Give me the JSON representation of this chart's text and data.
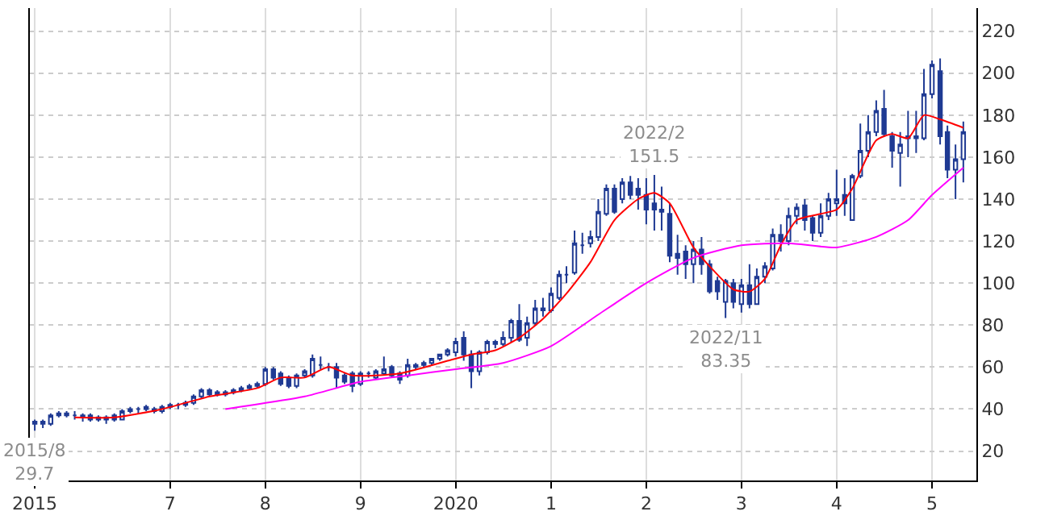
{
  "chart_data": {
    "type": "candlestick",
    "xlim": [
      "2015-07-10",
      "2025-06-20"
    ],
    "ylim": [
      6,
      231
    ],
    "xticks": [
      {
        "value": "2015-08",
        "label": "2015"
      },
      {
        "value": "2017-01",
        "label": "7"
      },
      {
        "value": "2018-01",
        "label": "8"
      },
      {
        "value": "2019-01",
        "label": "9"
      },
      {
        "value": "2020-01",
        "label": "2020"
      },
      {
        "value": "2021-01",
        "label": "1"
      },
      {
        "value": "2022-01",
        "label": "2"
      },
      {
        "value": "2023-01",
        "label": "3"
      },
      {
        "value": "2024-01",
        "label": "4"
      },
      {
        "value": "2025-01",
        "label": "5"
      }
    ],
    "yticks": [
      20,
      40,
      60,
      80,
      100,
      120,
      140,
      160,
      180,
      200,
      220
    ],
    "grid": true,
    "annotations": [
      {
        "text": "2022/2\n151.5",
        "x": "2022-02",
        "y": 151.5
      },
      {
        "text": "2022/11\n83.35",
        "x": "2022-11",
        "y": 83.35
      },
      {
        "text": "2015/8\n29.7",
        "x": "2015-08",
        "y": 29.7
      }
    ],
    "series": [
      {
        "type": "line",
        "color": "#ff0000",
        "x": [
          "2016-01",
          "2016-06",
          "2016-12",
          "2017-06",
          "2017-12",
          "2018-03",
          "2018-06",
          "2018-09",
          "2018-12",
          "2019-06",
          "2019-12",
          "2020-03",
          "2020-06",
          "2020-09",
          "2020-12",
          "2021-03",
          "2021-06",
          "2021-09",
          "2021-12",
          "2022-02",
          "2022-04",
          "2022-07",
          "2022-09",
          "2022-12",
          "2023-02",
          "2023-04",
          "2023-06",
          "2023-08",
          "2023-11",
          "2024-01",
          "2024-03",
          "2024-06",
          "2024-08",
          "2024-10",
          "2024-12",
          "2025-02",
          "2025-05"
        ],
        "values": [
          36,
          36,
          40,
          46,
          50,
          55,
          55,
          60,
          56,
          57,
          63,
          66,
          68,
          74,
          83,
          95,
          110,
          130,
          140,
          143,
          138,
          117,
          108,
          97,
          96,
          102,
          118,
          130,
          133,
          135,
          145,
          168,
          171,
          169,
          180,
          178,
          174
        ]
      },
      {
        "type": "line",
        "color": "#ff00ff",
        "x": [
          "2017-08",
          "2018-06",
          "2019-01",
          "2019-07",
          "2020-01",
          "2020-07",
          "2021-01",
          "2021-07",
          "2022-01",
          "2022-07",
          "2023-01",
          "2023-07",
          "2024-01",
          "2024-06",
          "2024-10",
          "2025-01",
          "2025-05"
        ],
        "values": [
          40,
          46,
          53,
          56,
          59,
          62,
          70,
          85,
          100,
          112,
          118,
          119,
          117,
          122,
          130,
          142,
          155
        ]
      },
      {
        "color": "#1f3a93",
        "x": [
          "2015-08",
          "2015-09",
          "2015-10",
          "2015-11",
          "2015-12",
          "2016-01",
          "2016-02",
          "2016-03",
          "2016-04",
          "2016-05",
          "2016-06",
          "2016-07",
          "2016-08",
          "2016-09",
          "2016-10",
          "2016-11",
          "2016-12",
          "2017-01",
          "2017-02",
          "2017-03",
          "2017-04",
          "2017-05",
          "2017-06",
          "2017-07",
          "2017-08",
          "2017-09",
          "2017-10",
          "2017-11",
          "2017-12",
          "2018-01",
          "2018-02",
          "2018-03",
          "2018-04",
          "2018-05",
          "2018-06",
          "2018-07",
          "2018-08",
          "2018-09",
          "2018-10",
          "2018-11",
          "2018-12",
          "2019-01",
          "2019-02",
          "2019-03",
          "2019-04",
          "2019-05",
          "2019-06",
          "2019-07",
          "2019-08",
          "2019-09",
          "2019-10",
          "2019-11",
          "2019-12",
          "2020-01",
          "2020-02",
          "2020-03",
          "2020-04",
          "2020-05",
          "2020-06",
          "2020-07",
          "2020-08",
          "2020-09",
          "2020-10",
          "2020-11",
          "2020-12",
          "2021-01",
          "2021-02",
          "2021-03",
          "2021-04",
          "2021-05",
          "2021-06",
          "2021-07",
          "2021-08",
          "2021-09",
          "2021-10",
          "2021-11",
          "2021-12",
          "2022-01",
          "2022-02",
          "2022-03",
          "2022-04",
          "2022-05",
          "2022-06",
          "2022-07",
          "2022-08",
          "2022-09",
          "2022-10",
          "2022-11",
          "2022-12",
          "2023-01",
          "2023-02",
          "2023-03",
          "2023-04",
          "2023-05",
          "2023-06",
          "2023-07",
          "2023-08",
          "2023-09",
          "2023-10",
          "2023-11",
          "2023-12",
          "2024-01",
          "2024-02",
          "2024-03",
          "2024-04",
          "2024-05",
          "2024-06",
          "2024-07",
          "2024-08",
          "2024-09",
          "2024-10",
          "2024-11",
          "2024-12",
          "2025-01",
          "2025-02",
          "2025-03",
          "2025-04",
          "2025-05"
        ],
        "ohlc": [
          [
            33,
            35,
            29.7,
            34
          ],
          [
            34,
            35,
            31,
            33
          ],
          [
            33,
            38,
            32,
            37
          ],
          [
            37,
            39,
            36,
            38
          ],
          [
            38,
            39,
            36,
            37
          ],
          [
            37,
            39,
            35,
            37
          ],
          [
            37,
            38,
            34,
            36
          ],
          [
            37,
            38,
            34,
            35
          ],
          [
            35,
            37,
            34,
            36
          ],
          [
            36,
            37,
            33,
            35
          ],
          [
            37,
            38,
            34,
            35
          ],
          [
            35,
            40,
            35,
            39
          ],
          [
            39,
            41,
            38,
            40
          ],
          [
            40,
            41,
            38,
            40
          ],
          [
            40,
            42,
            39,
            41
          ],
          [
            40,
            41,
            38,
            39
          ],
          [
            39,
            42,
            38,
            41
          ],
          [
            41,
            43,
            40,
            42
          ],
          [
            42,
            43,
            40,
            42
          ],
          [
            42,
            44,
            41,
            43
          ],
          [
            43,
            47,
            42,
            46
          ],
          [
            46,
            50,
            45,
            49
          ],
          [
            49,
            50,
            46,
            47
          ],
          [
            47,
            49,
            46,
            48
          ],
          [
            47,
            49,
            46,
            48
          ],
          [
            48,
            50,
            47,
            49
          ],
          [
            49,
            51,
            48,
            50
          ],
          [
            50,
            52,
            49,
            51
          ],
          [
            51,
            53,
            50,
            52
          ],
          [
            52,
            60,
            51,
            59
          ],
          [
            59,
            60,
            54,
            55
          ],
          [
            57,
            58,
            51,
            52
          ],
          [
            55,
            56,
            50,
            51
          ],
          [
            51,
            57,
            50,
            56
          ],
          [
            56,
            59,
            55,
            58
          ],
          [
            56,
            66,
            55,
            64
          ],
          [
            61,
            65,
            59,
            61
          ],
          [
            60,
            62,
            58,
            60
          ],
          [
            60,
            62,
            50,
            55
          ],
          [
            56,
            57,
            52,
            53
          ],
          [
            57,
            58,
            48,
            51
          ],
          [
            52,
            58,
            51,
            57
          ],
          [
            57,
            58,
            55,
            57
          ],
          [
            55,
            59,
            54,
            58
          ],
          [
            57,
            65,
            56,
            59
          ],
          [
            60,
            61,
            55,
            56
          ],
          [
            57,
            58,
            52,
            54
          ],
          [
            56,
            64,
            55,
            61
          ],
          [
            60,
            62,
            59,
            61
          ],
          [
            61,
            63,
            60,
            62
          ],
          [
            62,
            64,
            61,
            64
          ],
          [
            64,
            66,
            63,
            66
          ],
          [
            66,
            69,
            65,
            68
          ],
          [
            67,
            74,
            65,
            72
          ],
          [
            74,
            77,
            63,
            66
          ],
          [
            66,
            68,
            50,
            58
          ],
          [
            58,
            68,
            56,
            67
          ],
          [
            67,
            73,
            66,
            72
          ],
          [
            71,
            73,
            69,
            72
          ],
          [
            71,
            77,
            70,
            74
          ],
          [
            74,
            83,
            72,
            82
          ],
          [
            82,
            90,
            72,
            73
          ],
          [
            74,
            84,
            70,
            81
          ],
          [
            81,
            92,
            80,
            88
          ],
          [
            88,
            93,
            84,
            87
          ],
          [
            87,
            98,
            86,
            95
          ],
          [
            93,
            106,
            92,
            104
          ],
          [
            104,
            108,
            100,
            104
          ],
          [
            105,
            125,
            104,
            119
          ],
          [
            118,
            124,
            114,
            118
          ],
          [
            119,
            125,
            117,
            122
          ],
          [
            122,
            140,
            120,
            134
          ],
          [
            133,
            147,
            132,
            145
          ],
          [
            145,
            147,
            133,
            134
          ],
          [
            140,
            150,
            138,
            148
          ],
          [
            148,
            151,
            140,
            142
          ],
          [
            145,
            150,
            135,
            142
          ],
          [
            142,
            150,
            128,
            135
          ],
          [
            138,
            151.5,
            125,
            135
          ],
          [
            135,
            146,
            125,
            134
          ],
          [
            133,
            138,
            110,
            113
          ],
          [
            114,
            123,
            104,
            112
          ],
          [
            115,
            118,
            102,
            109
          ],
          [
            109,
            120,
            100,
            116
          ],
          [
            116,
            122,
            104,
            109
          ],
          [
            109,
            111,
            95,
            96
          ],
          [
            101,
            103,
            92,
            96
          ],
          [
            91,
            102,
            83.35,
            101
          ],
          [
            100,
            102,
            88,
            91
          ],
          [
            90,
            102,
            86,
            99
          ],
          [
            99,
            109,
            88,
            90
          ],
          [
            90,
            107,
            90,
            103
          ],
          [
            103,
            110,
            100,
            108
          ],
          [
            107,
            126,
            106,
            123
          ],
          [
            123,
            128,
            115,
            120
          ],
          [
            120,
            136,
            118,
            132
          ],
          [
            132,
            138,
            128,
            136
          ],
          [
            137,
            140,
            125,
            130
          ],
          [
            131,
            132,
            120,
            124
          ],
          [
            124,
            138,
            122,
            132
          ],
          [
            132,
            143,
            130,
            140
          ],
          [
            138,
            154,
            132,
            140
          ],
          [
            142,
            150,
            132,
            138
          ],
          [
            130,
            152,
            130,
            151
          ],
          [
            151,
            176,
            150,
            163
          ],
          [
            163,
            180,
            160,
            172
          ],
          [
            172,
            187,
            170,
            182
          ],
          [
            183,
            192,
            170,
            171
          ],
          [
            170,
            172,
            155,
            163
          ],
          [
            162,
            172,
            146,
            166
          ],
          [
            169,
            182,
            160,
            170
          ],
          [
            170,
            182,
            162,
            169
          ],
          [
            169,
            202,
            168,
            190
          ],
          [
            190,
            206,
            188,
            204
          ],
          [
            201,
            207,
            166,
            170
          ],
          [
            172,
            175,
            150,
            154
          ],
          [
            154,
            166,
            140,
            159
          ],
          [
            159,
            177,
            148,
            172
          ]
        ]
      }
    ]
  }
}
